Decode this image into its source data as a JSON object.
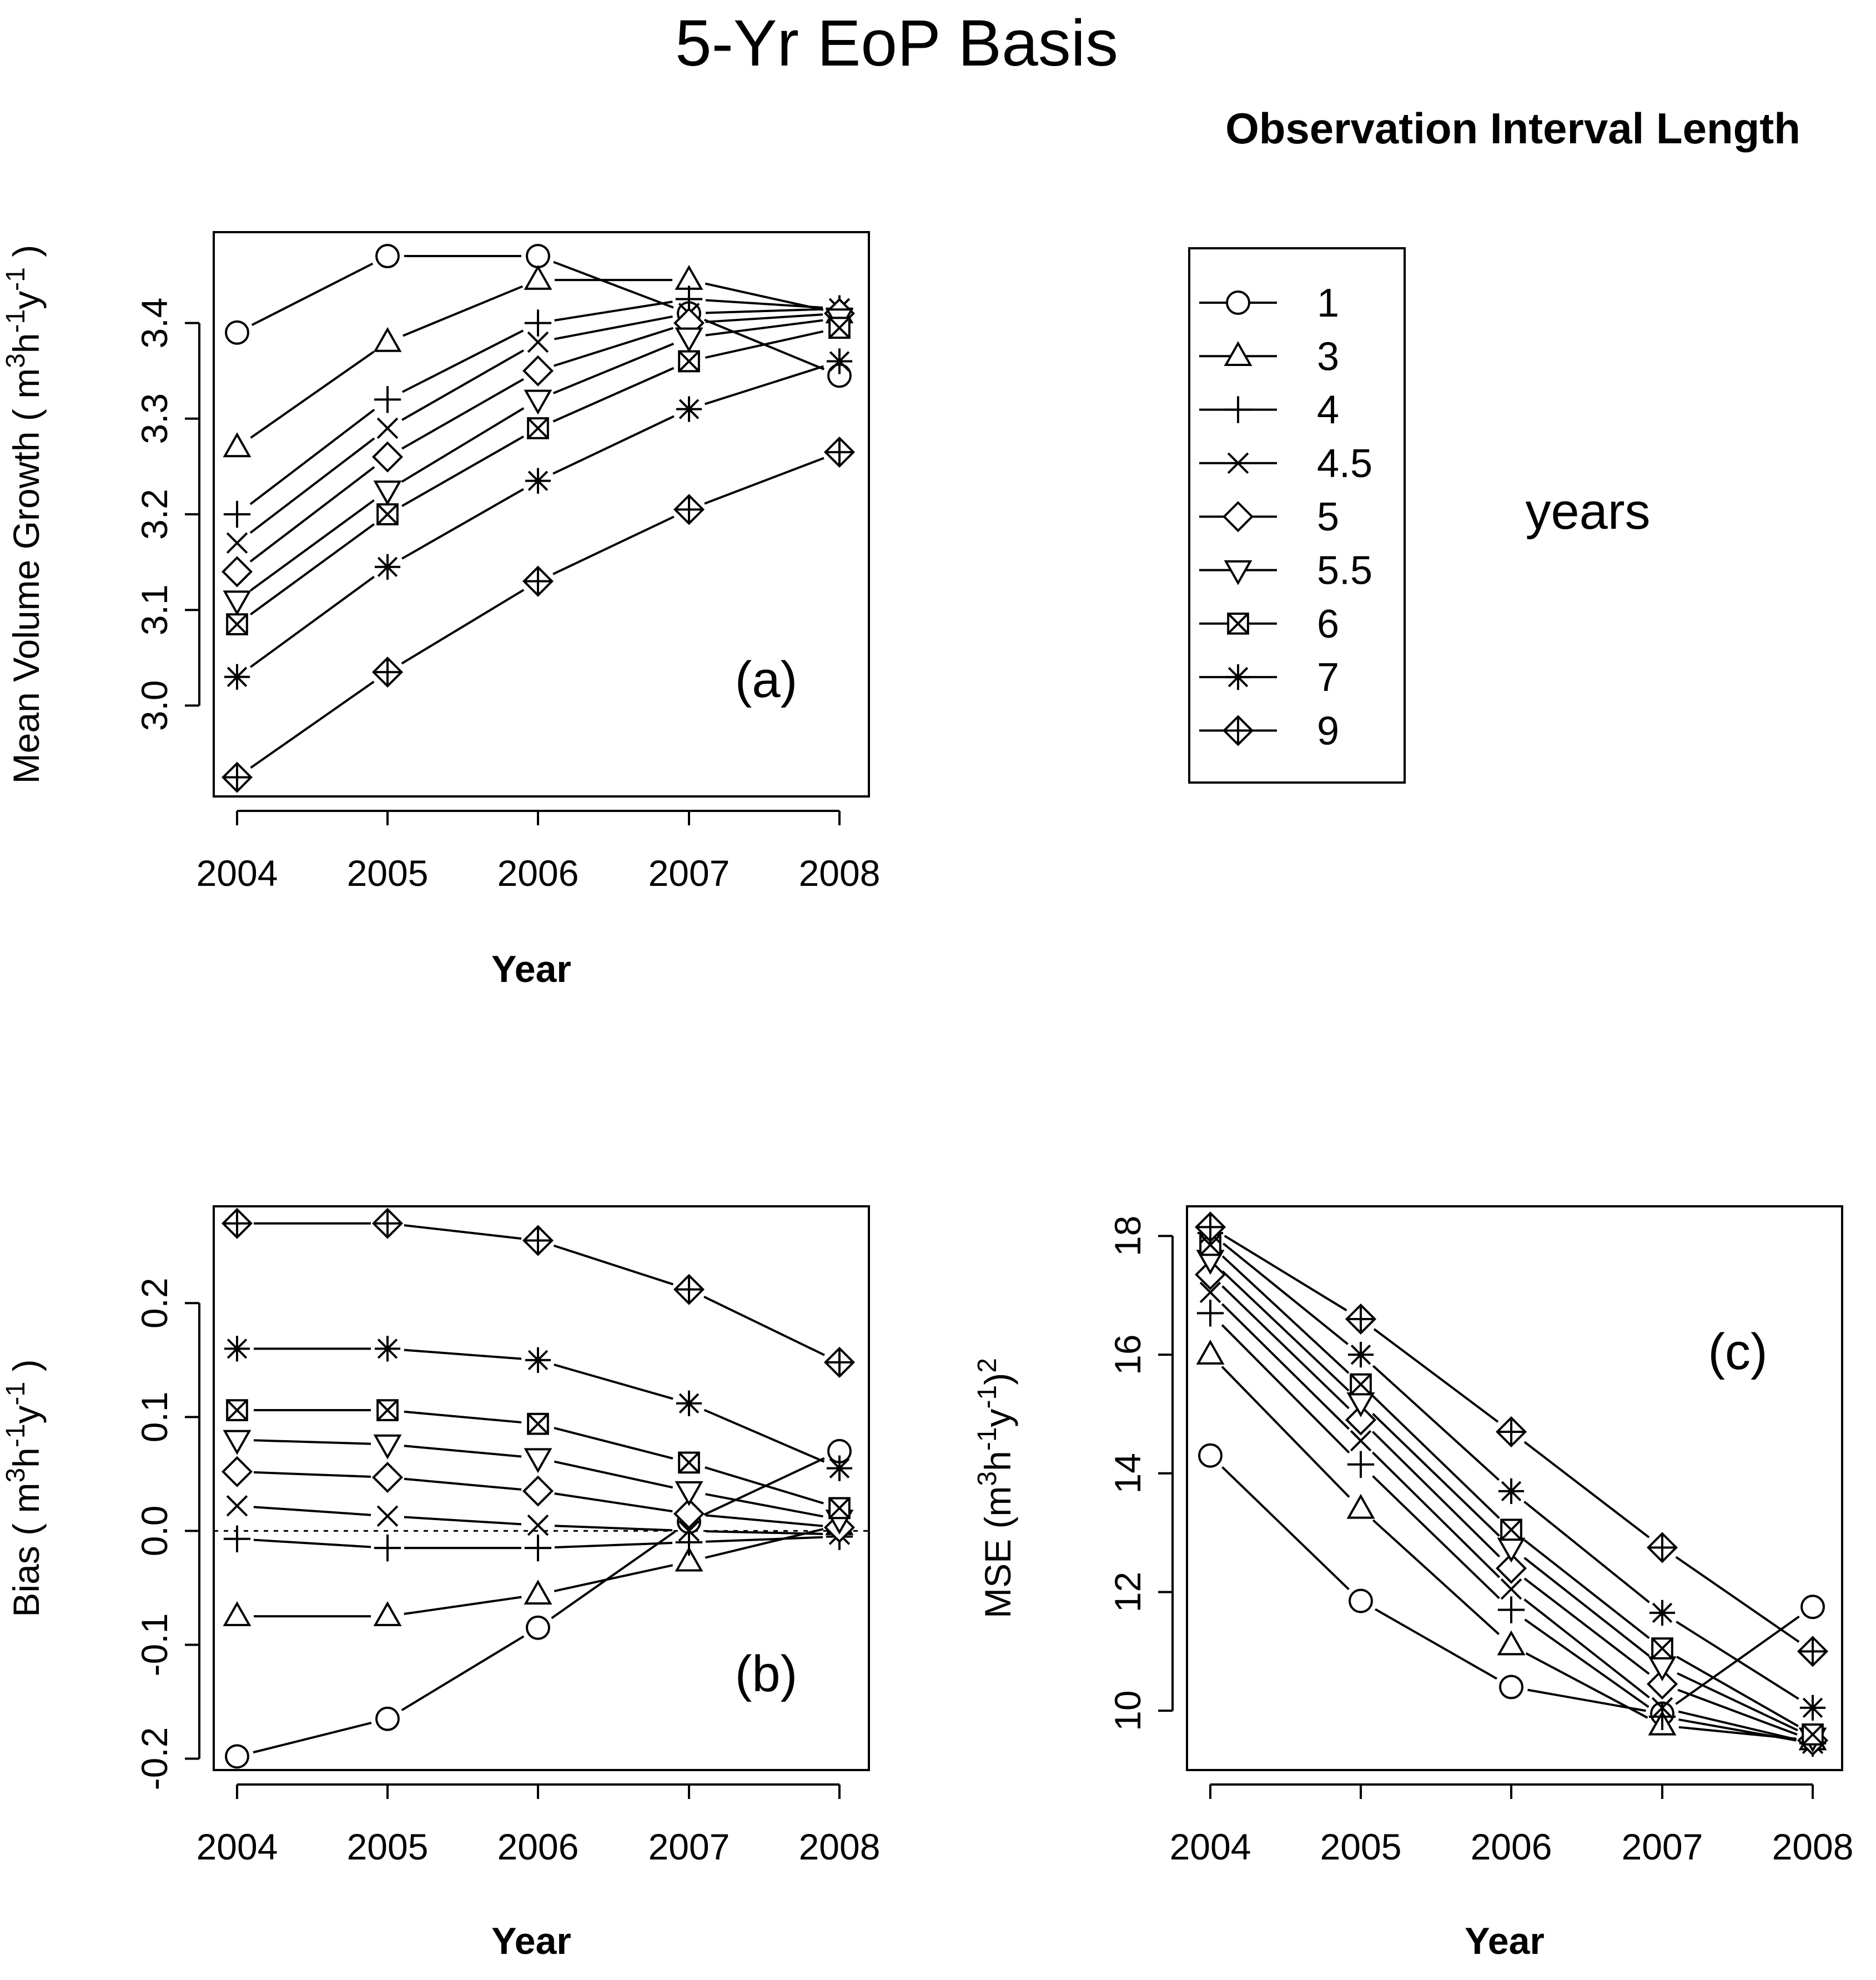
{
  "figure": {
    "title": "5-Yr EoP Basis",
    "legend_title": "Observation Interval Length",
    "legend_units": "years"
  },
  "legend": {
    "entries": [
      {
        "label": "1",
        "marker": "circle"
      },
      {
        "label": "3",
        "marker": "triangle"
      },
      {
        "label": "4",
        "marker": "plus"
      },
      {
        "label": "4.5",
        "marker": "cross"
      },
      {
        "label": "5",
        "marker": "diamond"
      },
      {
        "label": "5.5",
        "marker": "triangle-down"
      },
      {
        "label": "6",
        "marker": "boxed-x"
      },
      {
        "label": "7",
        "marker": "asterisk"
      },
      {
        "label": "9",
        "marker": "diamond-plus"
      }
    ]
  },
  "chart_data": [
    {
      "id": "a",
      "type": "line",
      "panel_label": "(a)",
      "title": "",
      "xlabel": "Year",
      "ylabel": {
        "prefix": "Mean Volume Growth  ( m",
        "units": [
          "3",
          "h",
          "-1",
          "y",
          "-1",
          " )"
        ]
      },
      "categories": [
        "2004",
        "2005",
        "2006",
        "2007",
        "2008"
      ],
      "ylim": [
        2.905,
        3.495
      ],
      "yticks": [
        "3.0",
        "3.1",
        "3.2",
        "3.3",
        "3.4"
      ],
      "ytick_values": [
        3.0,
        3.1,
        3.2,
        3.3,
        3.4
      ],
      "reference_line": null,
      "series": [
        {
          "name": "1",
          "marker": "circle",
          "values": [
            3.39,
            3.47,
            3.47,
            3.41,
            3.345
          ]
        },
        {
          "name": "3",
          "marker": "triangle",
          "values": [
            3.27,
            3.38,
            3.445,
            3.445,
            3.41
          ]
        },
        {
          "name": "4",
          "marker": "plus",
          "values": [
            3.2,
            3.32,
            3.4,
            3.425,
            3.415
          ]
        },
        {
          "name": "4.5",
          "marker": "cross",
          "values": [
            3.17,
            3.29,
            3.38,
            3.41,
            3.415
          ]
        },
        {
          "name": "5",
          "marker": "diamond",
          "values": [
            3.14,
            3.26,
            3.35,
            3.4,
            3.41
          ]
        },
        {
          "name": "5.5",
          "marker": "triangle-down",
          "values": [
            3.11,
            3.225,
            3.32,
            3.385,
            3.405
          ]
        },
        {
          "name": "6",
          "marker": "boxed-x",
          "values": [
            3.085,
            3.2,
            3.29,
            3.36,
            3.395
          ]
        },
        {
          "name": "7",
          "marker": "asterisk",
          "values": [
            3.03,
            3.145,
            3.235,
            3.31,
            3.36
          ]
        },
        {
          "name": "9",
          "marker": "diamond-plus",
          "values": [
            2.925,
            3.035,
            3.13,
            3.205,
            3.265
          ]
        }
      ]
    },
    {
      "id": "b",
      "type": "line",
      "panel_label": "(b)",
      "title": "",
      "xlabel": "Year",
      "ylabel": {
        "prefix": "Bias  ( m",
        "units": [
          "3",
          "h",
          "-1",
          "y",
          "-1",
          " )"
        ]
      },
      "categories": [
        "2004",
        "2005",
        "2006",
        "2007",
        "2008"
      ],
      "ylim": [
        -0.21,
        0.285
      ],
      "yticks": [
        "-0.2",
        "-0.1",
        "0.0",
        "0.1",
        "0.2"
      ],
      "ytick_values": [
        -0.2,
        -0.1,
        0.0,
        0.1,
        0.2
      ],
      "reference_line": 0.0,
      "series": [
        {
          "name": "1",
          "marker": "circle",
          "values": [
            -0.198,
            -0.165,
            -0.085,
            0.008,
            0.07
          ]
        },
        {
          "name": "3",
          "marker": "triangle",
          "values": [
            -0.075,
            -0.075,
            -0.056,
            -0.027,
            0.005
          ]
        },
        {
          "name": "4",
          "marker": "plus",
          "values": [
            -0.007,
            -0.015,
            -0.015,
            -0.01,
            -0.005
          ]
        },
        {
          "name": "4.5",
          "marker": "cross",
          "values": [
            0.022,
            0.013,
            0.005,
            0.0,
            -0.003
          ]
        },
        {
          "name": "5",
          "marker": "diamond",
          "values": [
            0.052,
            0.047,
            0.035,
            0.015,
            0.003
          ]
        },
        {
          "name": "5.5",
          "marker": "triangle-down",
          "values": [
            0.08,
            0.076,
            0.064,
            0.035,
            0.01
          ]
        },
        {
          "name": "6",
          "marker": "boxed-x",
          "values": [
            0.106,
            0.106,
            0.094,
            0.06,
            0.02
          ]
        },
        {
          "name": "7",
          "marker": "asterisk",
          "values": [
            0.16,
            0.16,
            0.15,
            0.112,
            0.055
          ]
        },
        {
          "name": "9",
          "marker": "diamond-plus",
          "values": [
            0.27,
            0.27,
            0.255,
            0.212,
            0.148
          ]
        }
      ]
    },
    {
      "id": "c",
      "type": "line",
      "panel_label": "(c)",
      "title": "",
      "xlabel": "Year",
      "ylabel": {
        "prefix": "MSE   (m",
        "units": [
          "3",
          "h",
          "-1",
          "y",
          "-1",
          ")",
          "2"
        ]
      },
      "categories": [
        "2004",
        "2005",
        "2006",
        "2007",
        "2008"
      ],
      "ylim": [
        9.0,
        18.5
      ],
      "yticks": [
        "10",
        "12",
        "14",
        "16",
        "18"
      ],
      "ytick_values": [
        10,
        12,
        14,
        16,
        18
      ],
      "reference_line": null,
      "series": [
        {
          "name": "1",
          "marker": "circle",
          "values": [
            14.3,
            11.85,
            10.4,
            9.95,
            11.75
          ]
        },
        {
          "name": "3",
          "marker": "triangle",
          "values": [
            16.0,
            13.4,
            11.1,
            9.75,
            9.5
          ]
        },
        {
          "name": "4",
          "marker": "plus",
          "values": [
            16.7,
            14.15,
            11.7,
            9.9,
            9.45
          ]
        },
        {
          "name": "4.5",
          "marker": "cross",
          "values": [
            17.05,
            14.55,
            12.05,
            10.05,
            9.45
          ]
        },
        {
          "name": "5",
          "marker": "diamond",
          "values": [
            17.35,
            14.9,
            12.4,
            10.45,
            9.5
          ]
        },
        {
          "name": "5.5",
          "marker": "triangle-down",
          "values": [
            17.6,
            15.2,
            12.75,
            10.75,
            9.55
          ]
        },
        {
          "name": "6",
          "marker": "boxed-x",
          "values": [
            17.85,
            15.5,
            13.05,
            11.05,
            9.6
          ]
        },
        {
          "name": "7",
          "marker": "asterisk",
          "values": [
            18.05,
            16.0,
            13.7,
            11.65,
            10.05
          ]
        },
        {
          "name": "9",
          "marker": "diamond-plus",
          "values": [
            18.15,
            16.6,
            14.7,
            12.75,
            11.0
          ]
        }
      ]
    }
  ]
}
